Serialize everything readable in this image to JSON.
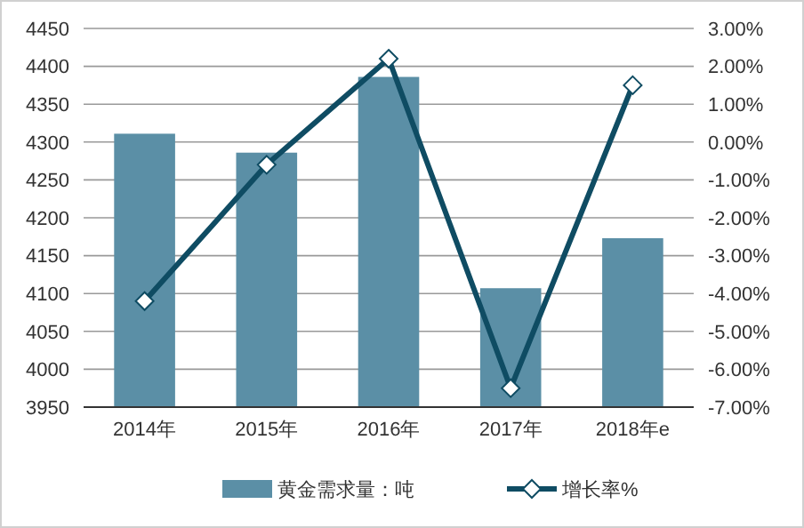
{
  "chart_data": {
    "type": "bar",
    "categories": [
      "2014年",
      "2015年",
      "2016年",
      "2017年",
      "2018年e"
    ],
    "series": [
      {
        "name": "黄金需求量：吨",
        "color": "#5b8fa6",
        "values": [
          4311,
          4286,
          4386,
          4107,
          4173
        ]
      },
      {
        "name": "增长率%",
        "type": "line",
        "axis": "y2",
        "color": "#0f4c63",
        "marker": "diamond",
        "values": [
          -4.2,
          -0.6,
          2.2,
          -6.5,
          1.5
        ]
      }
    ],
    "ylim": [
      3950,
      4450
    ],
    "yticks": [
      3950,
      4000,
      4050,
      4100,
      4150,
      4200,
      4250,
      4300,
      4350,
      4400,
      4450
    ],
    "y2lim": [
      -7,
      3
    ],
    "y2ticks": [
      {
        "value": -7,
        "label": "-7.00%"
      },
      {
        "value": -6,
        "label": "-6.00%"
      },
      {
        "value": -5,
        "label": "-5.00%"
      },
      {
        "value": -4,
        "label": "-4.00%"
      },
      {
        "value": -3,
        "label": "-3.00%"
      },
      {
        "value": -2,
        "label": "-2.00%"
      },
      {
        "value": -1,
        "label": "-1.00%"
      },
      {
        "value": 0,
        "label": "0.00%"
      },
      {
        "value": 1,
        "label": "1.00%"
      },
      {
        "value": 2,
        "label": "2.00%"
      },
      {
        "value": 3,
        "label": "3.00%"
      }
    ],
    "grid": "y",
    "legend": "bottom"
  }
}
